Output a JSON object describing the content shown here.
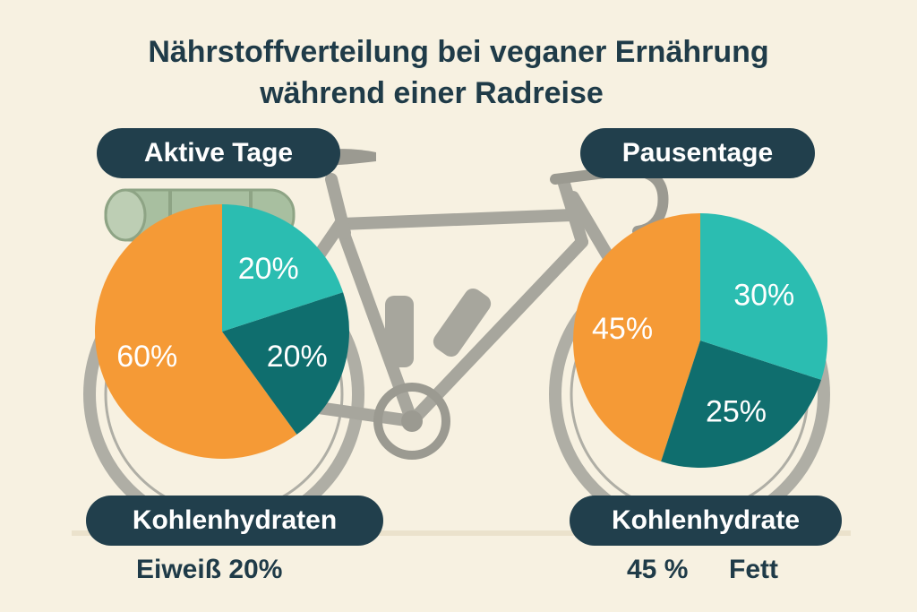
{
  "title_line1": "Nährstoffverteilung bei veganer Ernährung",
  "title_line2": "während einer Radreise",
  "chart_data": [
    {
      "type": "pie",
      "title": "Aktive Tage",
      "values": [
        60,
        20,
        20
      ],
      "labels": [
        "60%",
        "20%",
        "20%"
      ],
      "colors": [
        "#f59a36",
        "#0f6e6e",
        "#2bbdb1"
      ],
      "start_angle_deg": 0,
      "direction": "counterclockwise"
    },
    {
      "type": "pie",
      "title": "Pausentage",
      "values": [
        45,
        25,
        30
      ],
      "labels": [
        "45%",
        "25%",
        "30%"
      ],
      "colors": [
        "#f59a36",
        "#0f6e6e",
        "#2bbdb1"
      ],
      "start_angle_deg": 0,
      "direction": "counterclockwise"
    }
  ],
  "bottom": {
    "left_pill": "Kohlenhydraten",
    "left_caption": "Eiweiß 20%",
    "right_pill": "Kohlenhydrate",
    "right_caption_a": "45 %",
    "right_caption_b": "Fett"
  },
  "illustration": {
    "subject": "touring-bicycle-icon",
    "frame_color": "#8f8f86",
    "bedroll_color": "#8fb08a"
  }
}
